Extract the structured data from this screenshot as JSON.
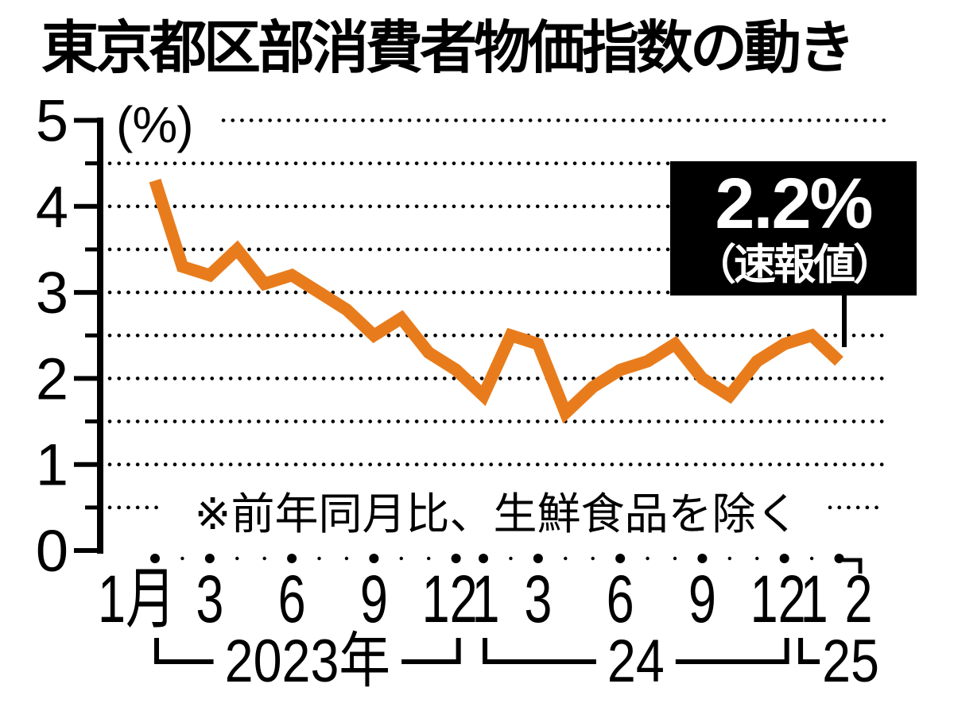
{
  "title": "東京都区部消費者物価指数の動き",
  "unit_label": "(%)",
  "footnote": "※前年同月比、生鮮食品を除く",
  "callout": {
    "value": "2.2%",
    "sublabel": "（速報値）"
  },
  "colors": {
    "line": "#e87c1c",
    "ink": "#000000",
    "background": "#ffffff",
    "callout_bg": "#000000",
    "callout_text": "#ffffff"
  },
  "y_axis": {
    "min": 0,
    "max": 5,
    "minor_step": 0.5,
    "tick_labels": [
      "5",
      "4",
      "3",
      "2",
      "1",
      "0"
    ]
  },
  "x_axis": {
    "month_count": 26,
    "major_dot_months": [
      1,
      3,
      6,
      9,
      12,
      13,
      15,
      18,
      21,
      24,
      26
    ],
    "last_month_connector": true,
    "year_groups": [
      {
        "label": "2023年",
        "from": 1,
        "to": 12,
        "bracket": "both"
      },
      {
        "label": "24",
        "from": 13,
        "to": 24,
        "bracket": "both"
      },
      {
        "label": "25",
        "from": 25,
        "to": 26,
        "bracket": "left"
      }
    ]
  },
  "chart_data": {
    "type": "line",
    "title": "東京都区部消費者物価指数の動き",
    "ylabel": "%",
    "ylim": [
      0,
      5
    ],
    "grid": "dotted horizontal lines every 0.5",
    "legend": "none",
    "x": [
      "2023-01",
      "2023-02",
      "2023-03",
      "2023-04",
      "2023-05",
      "2023-06",
      "2023-07",
      "2023-08",
      "2023-09",
      "2023-10",
      "2023-11",
      "2023-12",
      "2024-01",
      "2024-02",
      "2024-03",
      "2024-04",
      "2024-05",
      "2024-06",
      "2024-07",
      "2024-08",
      "2024-09",
      "2024-10",
      "2024-11",
      "2024-12",
      "2025-01",
      "2025-02"
    ],
    "x_tick_labels": [
      "1月",
      null,
      "3",
      null,
      null,
      "6",
      null,
      null,
      "9",
      null,
      null,
      "12",
      "1",
      null,
      "3",
      null,
      null,
      "6",
      null,
      null,
      "9",
      null,
      null,
      "12",
      "1",
      "2"
    ],
    "series": [
      {
        "name": "前年同月比、生鮮食品を除く",
        "values": [
          4.3,
          3.3,
          3.2,
          3.5,
          3.1,
          3.2,
          3.0,
          2.8,
          2.5,
          2.7,
          2.3,
          2.1,
          1.8,
          2.5,
          2.4,
          1.6,
          1.9,
          2.1,
          2.2,
          2.4,
          2.0,
          1.8,
          2.2,
          2.4,
          2.5,
          2.2
        ]
      }
    ],
    "annotation": {
      "text": "2.2%（速報値）",
      "x": "2025-02",
      "y": 2.2
    }
  }
}
